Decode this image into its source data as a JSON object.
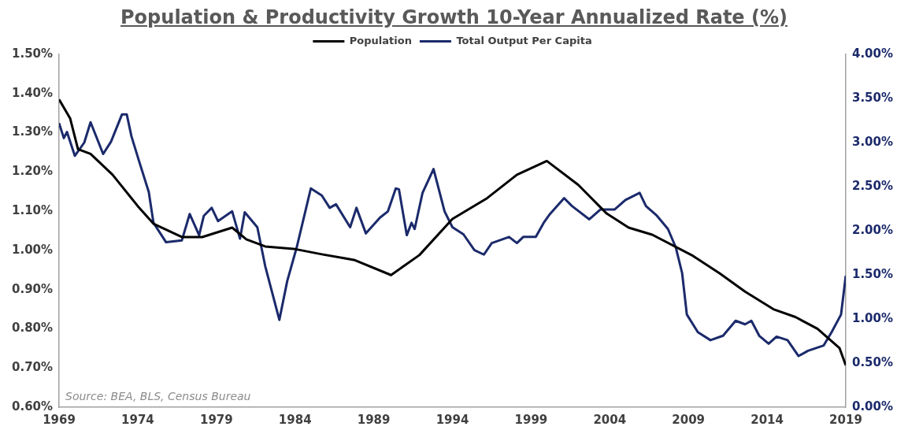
{
  "chart_data": {
    "type": "line",
    "title": "Population & Productivity Growth 10-Year Annualized Rate (%)",
    "xlim": [
      1969,
      2019
    ],
    "xticks": [
      1969,
      1974,
      1979,
      1984,
      1989,
      1994,
      1999,
      2004,
      2009,
      2014,
      2019
    ],
    "ylim": [
      0.6,
      1.5
    ],
    "yticks": [
      {
        "value": 0.6,
        "label": "0.60%"
      },
      {
        "value": 0.7,
        "label": "0.70%"
      },
      {
        "value": 0.8,
        "label": "0.80%"
      },
      {
        "value": 0.9,
        "label": "0.90%"
      },
      {
        "value": 1.0,
        "label": "1.00%"
      },
      {
        "value": 1.1,
        "label": "1.10%"
      },
      {
        "value": 1.2,
        "label": "1.20%"
      },
      {
        "value": 1.3,
        "label": "1.30%"
      },
      {
        "value": 1.4,
        "label": "1.40%"
      },
      {
        "value": 1.5,
        "label": "1.50%"
      }
    ],
    "y2lim": [
      0,
      4
    ],
    "y2ticks": [
      {
        "value": 0,
        "label": "0.00%"
      },
      {
        "value": 0.5,
        "label": "0.50%"
      },
      {
        "value": 1,
        "label": "1.00%"
      },
      {
        "value": 1.5,
        "label": "1.50%"
      },
      {
        "value": 2,
        "label": "2.00%"
      },
      {
        "value": 2.5,
        "label": "2.50%"
      },
      {
        "value": 3,
        "label": "3.00%"
      },
      {
        "value": 3.5,
        "label": "3.50%"
      },
      {
        "value": 4,
        "label": "4.00%"
      }
    ],
    "grid": false,
    "legend": "top",
    "marker": "none",
    "line_style": "solid",
    "annotations": [
      "Source: BEA, BLS, Census Bureau"
    ],
    "series": [
      {
        "name": "Population",
        "color": "#000000",
        "x": [
          1969.0,
          1969.7,
          1970.2,
          1971.0,
          1972.4,
          1974.0,
          1975.0,
          1976.8,
          1978.1,
          1980.0,
          1980.9,
          1982.1,
          1983.9,
          1985.7,
          1987.1,
          1987.8,
          1990.1,
          1991.9,
          1994.0,
          1996.2,
          1998.1,
          2000.0,
          2002.0,
          2003.8,
          2005.2,
          2006.7,
          2009.2,
          2011.0,
          2012.6,
          2014.4,
          2015.8,
          2017.2,
          2018.6,
          2019.0
        ],
        "values": [
          1.385,
          1.337,
          1.258,
          1.246,
          1.193,
          1.113,
          1.068,
          1.034,
          1.034,
          1.058,
          1.028,
          1.01,
          1.004,
          0.99,
          0.98,
          0.975,
          0.937,
          0.988,
          1.08,
          1.133,
          1.193,
          1.228,
          1.167,
          1.094,
          1.058,
          1.04,
          0.988,
          0.941,
          0.895,
          0.85,
          0.83,
          0.8,
          0.751,
          0.707
        ]
      },
      {
        "name": "Total Output Per Capita",
        "color": "#1b2a6b",
        "axis": "y2",
        "x": [
          1969.0,
          1969.3,
          1969.5,
          1970.0,
          1970.6,
          1971.0,
          1971.8,
          1972.3,
          1973.0,
          1973.3,
          1973.6,
          1974.1,
          1974.7,
          1975.0,
          1975.8,
          1976.8,
          1977.3,
          1977.9,
          1978.2,
          1978.7,
          1979.1,
          1980.0,
          1980.5,
          1980.8,
          1981.6,
          1982.1,
          1983.0,
          1983.5,
          1984.1,
          1985.0,
          1985.7,
          1986.2,
          1986.6,
          1987.5,
          1987.9,
          1988.5,
          1989.4,
          1989.9,
          1990.4,
          1990.6,
          1991.1,
          1991.4,
          1991.6,
          1992.1,
          1992.8,
          1993.5,
          1994.0,
          1994.7,
          1995.4,
          1996.0,
          1996.5,
          1997.6,
          1998.1,
          1998.5,
          1999.3,
          1999.8,
          2000.2,
          2001.1,
          2001.6,
          2002.7,
          2003.4,
          2004.3,
          2005.0,
          2005.9,
          2006.3,
          2007.0,
          2007.7,
          2008.2,
          2008.6,
          2008.9,
          2009.6,
          2010.4,
          2011.2,
          2012.0,
          2012.6,
          2013.0,
          2013.5,
          2014.1,
          2014.6,
          2015.3,
          2016.0,
          2016.6,
          2017.6,
          2018.1,
          2018.7,
          2019.0
        ],
        "values": [
          3.22,
          3.05,
          3.12,
          2.85,
          3.0,
          3.23,
          2.87,
          3.01,
          3.32,
          3.32,
          3.07,
          2.78,
          2.44,
          2.09,
          1.87,
          1.89,
          2.19,
          1.95,
          2.17,
          2.26,
          2.11,
          2.22,
          1.91,
          2.21,
          2.04,
          1.6,
          0.99,
          1.43,
          1.81,
          2.48,
          2.4,
          2.26,
          2.3,
          2.04,
          2.26,
          1.97,
          2.15,
          2.22,
          2.48,
          2.47,
          1.95,
          2.09,
          2.02,
          2.43,
          2.7,
          2.22,
          2.04,
          1.96,
          1.78,
          1.73,
          1.86,
          1.93,
          1.86,
          1.93,
          1.93,
          2.09,
          2.19,
          2.37,
          2.28,
          2.13,
          2.24,
          2.24,
          2.35,
          2.43,
          2.28,
          2.17,
          2.02,
          1.81,
          1.52,
          1.05,
          0.85,
          0.76,
          0.81,
          0.98,
          0.94,
          0.98,
          0.81,
          0.72,
          0.8,
          0.76,
          0.58,
          0.64,
          0.7,
          0.85,
          1.05,
          1.49
        ]
      }
    ]
  }
}
